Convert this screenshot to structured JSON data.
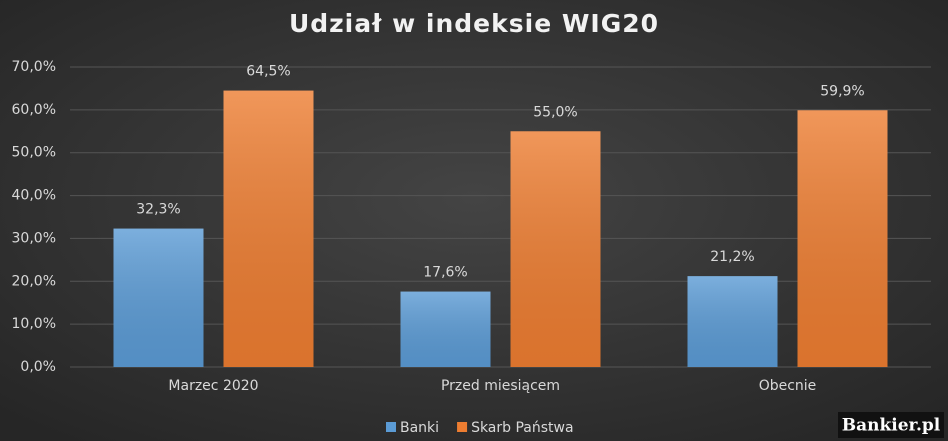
{
  "chart_data": {
    "type": "bar",
    "title": "Udział w indeksie WIG20",
    "categories": [
      "Marzec 2020",
      "Przed miesiącem",
      "Obecnie"
    ],
    "series": [
      {
        "name": "Banki",
        "color": "#5b9bd5",
        "values": [
          32.3,
          17.6,
          21.2
        ],
        "value_labels": [
          "32,3%",
          "17,6%",
          "21,2%"
        ]
      },
      {
        "name": "Skarb Państwa",
        "color": "#ed7d31",
        "values": [
          64.5,
          55.0,
          59.9
        ],
        "value_labels": [
          "64,5%",
          "55,0%",
          "59,9%"
        ]
      }
    ],
    "ylim": [
      0,
      70
    ],
    "yticks": [
      {
        "value": 0,
        "label": "0,0%"
      },
      {
        "value": 10,
        "label": "10,0%"
      },
      {
        "value": 20,
        "label": "20,0%"
      },
      {
        "value": 30,
        "label": "30,0%"
      },
      {
        "value": 40,
        "label": "40,0%"
      },
      {
        "value": 50,
        "label": "50,0%"
      },
      {
        "value": 60,
        "label": "60,0%"
      },
      {
        "value": 70,
        "label": "70,0%"
      }
    ],
    "grid": true,
    "legend": "bottom",
    "watermark": "Bankier.pl"
  }
}
